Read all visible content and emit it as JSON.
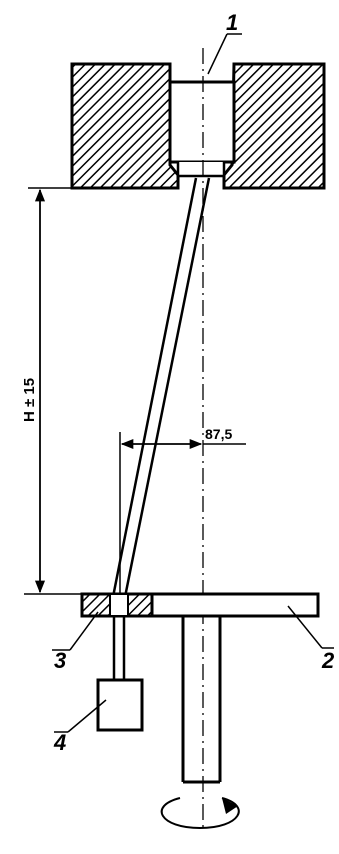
{
  "labels": {
    "part1": "1",
    "part2": "2",
    "part3": "3",
    "part4": "4"
  },
  "dimensions": {
    "height": "H ± 15",
    "offset": "87,5"
  }
}
